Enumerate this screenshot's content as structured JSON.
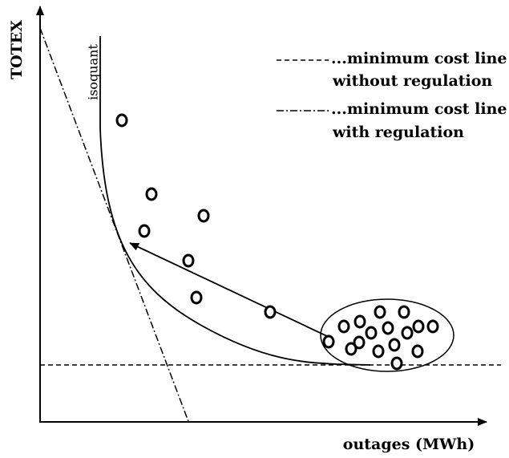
{
  "axes": {
    "y_label": "TOTEX",
    "x_label": "outages (MWh)"
  },
  "curve_label": "isoquant",
  "legend": [
    {
      "line1": "...minimum cost line",
      "line2": "without regulation"
    },
    {
      "line1": "...minimum cost line",
      "line2": "with regulation"
    }
  ]
}
